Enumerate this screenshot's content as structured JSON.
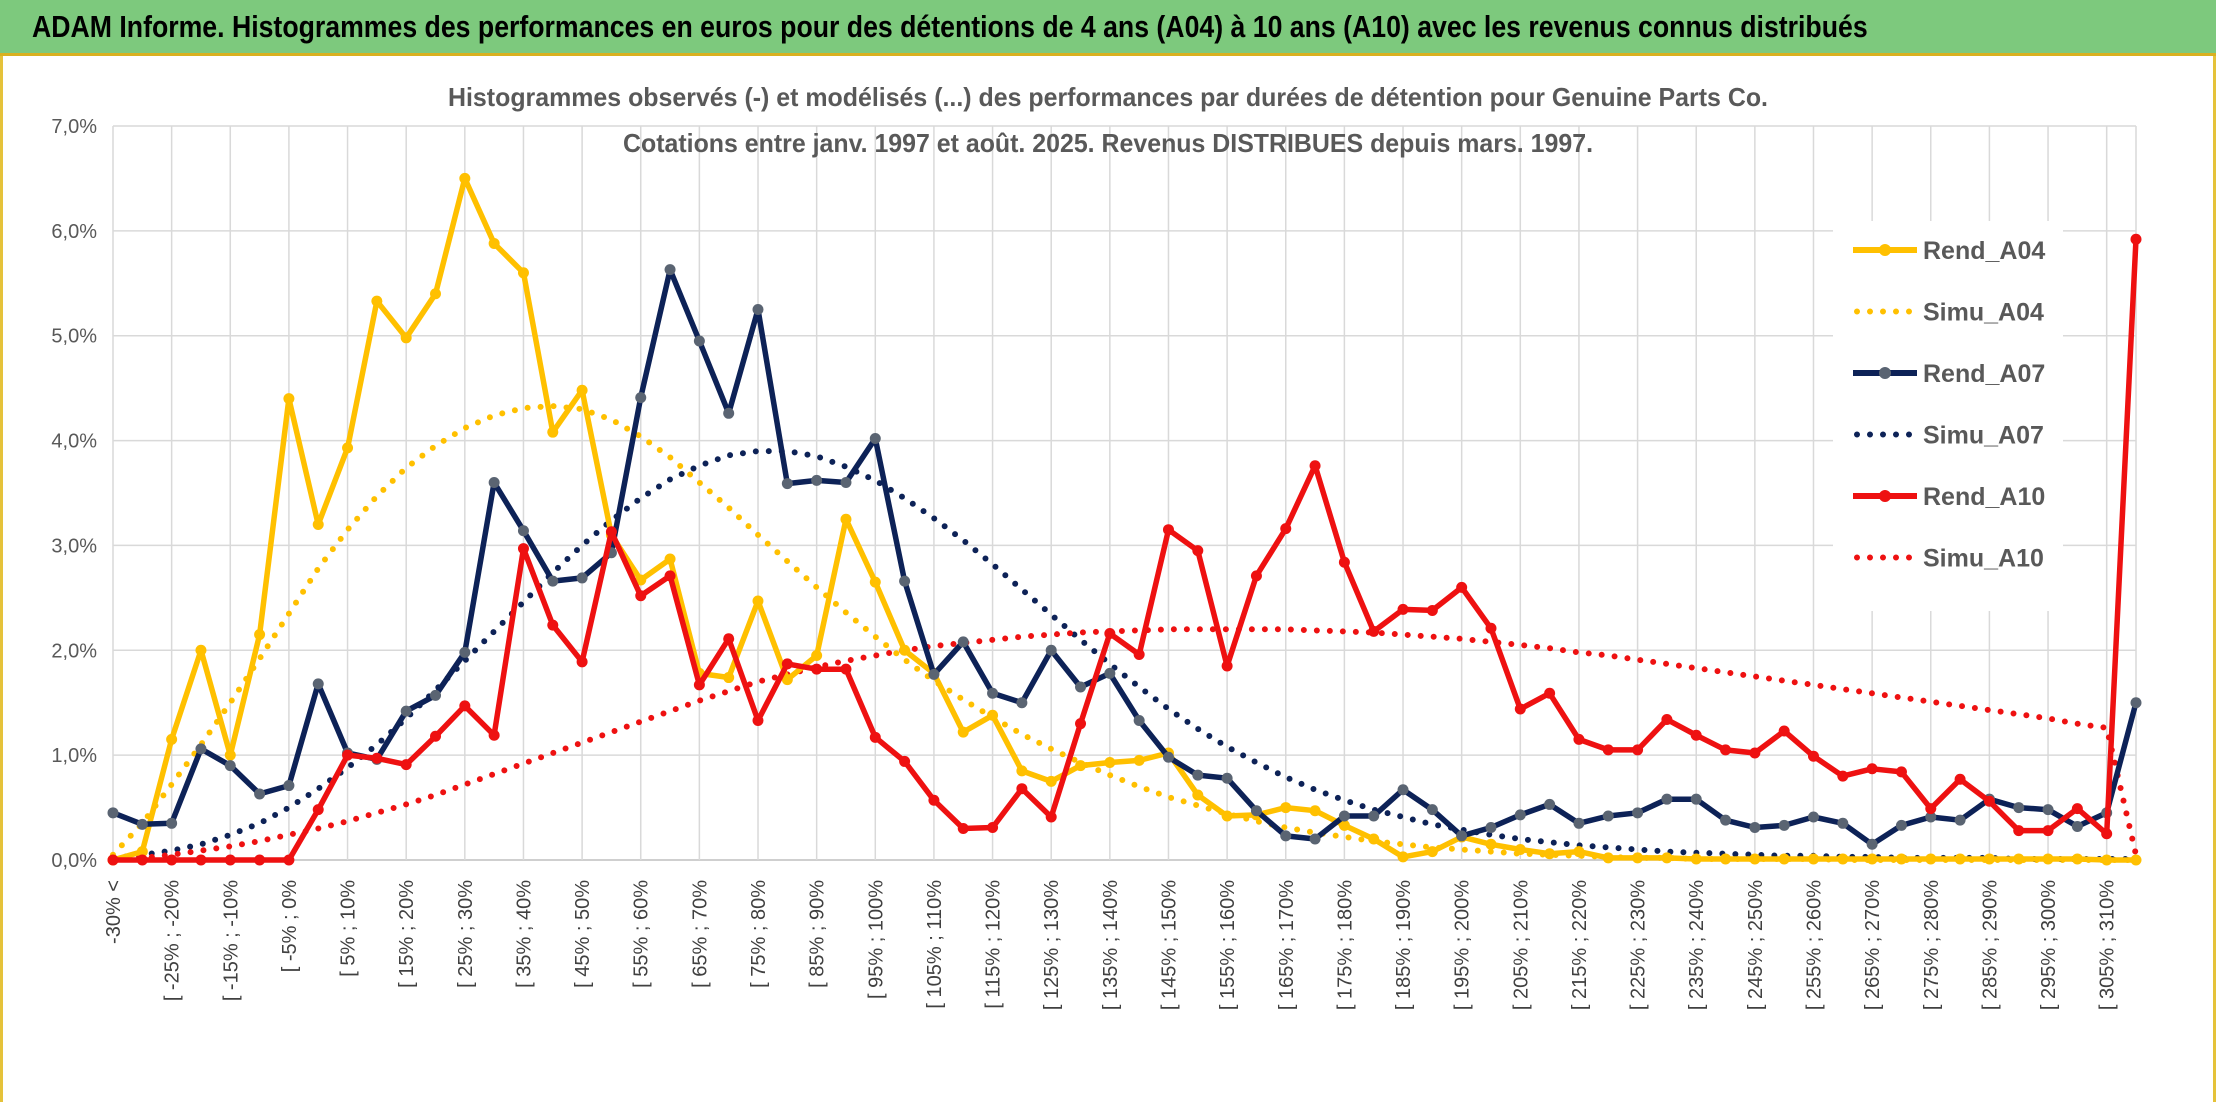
{
  "header": {
    "title": "ADAM Informe. Histogrammes des performances en euros pour des détentions de 4 ans (A04) à 10 ans (A10) avec les revenus connus distribués"
  },
  "chart_data": {
    "type": "line",
    "title": "Histogrammes observés (-) et modélisés (...) des performances par durées de détention pour Genuine Parts Co.",
    "subtitle": "Cotations entre janv. 1997 et août. 2025. Revenus DISTRIBUES depuis mars. 1997.",
    "ylim": [
      0,
      7
    ],
    "y_ticks": [
      "0,0%",
      "1,0%",
      "2,0%",
      "3,0%",
      "4,0%",
      "5,0%",
      "6,0%",
      "7,0%"
    ],
    "grid": true,
    "legend_position": "right",
    "x_tick_labels": [
      "-30% <",
      "[ -25% ; -20%",
      "[ -15% ; -10%",
      "[ -5% ; 0%",
      "[ 5% ; 10%",
      "[ 15% ; 20%",
      "[ 25% ; 30%",
      "[ 35% ; 40%",
      "[ 45% ; 50%",
      "[ 55% ; 60%",
      "[ 65% ; 70%",
      "[ 75% ; 80%",
      "[ 85% ; 90%",
      "[ 95% ; 100%",
      "[ 105% ; 110%",
      "[ 115% ; 120%",
      "[ 125% ; 130%",
      "[ 135% ; 140%",
      "[ 145% ; 150%",
      "[ 155% ; 160%",
      "[ 165% ; 170%",
      "[ 175% ; 180%",
      "[ 185% ; 190%",
      "[ 195% ; 200%",
      "[ 205% ; 210%",
      "[ 215% ; 220%",
      "[ 225% ; 230%",
      "[ 235% ; 240%",
      "[ 245% ; 250%",
      "[ 255% ; 260%",
      "[ 265% ; 270%",
      "[ 275% ; 280%",
      "[ 285% ; 290%",
      "[ 295% ; 300%",
      "[ 305% ; 310%"
    ],
    "series": [
      {
        "name": "Rend_A04",
        "style": "solid",
        "color": "#ffc000",
        "values": [
          0.0,
          0.08,
          1.15,
          2.0,
          1.0,
          2.15,
          4.4,
          3.2,
          3.93,
          5.33,
          4.98,
          5.4,
          6.5,
          5.88,
          5.6,
          4.08,
          4.48,
          3.1,
          2.67,
          2.87,
          1.78,
          1.74,
          2.47,
          1.72,
          1.95,
          3.25,
          2.65,
          2.0,
          1.78,
          1.22,
          1.38,
          0.85,
          0.75,
          0.9,
          0.93,
          0.95,
          1.02,
          0.62,
          0.42,
          0.43,
          0.5,
          0.47,
          0.33,
          0.2,
          0.03,
          0.08,
          0.22,
          0.15,
          0.1,
          0.06,
          0.08,
          0.02,
          0.02,
          0.02,
          0.01,
          0.01,
          0.01,
          0.01,
          0.01,
          0.01,
          0.01,
          0.01,
          0.01,
          0.01,
          0.01,
          0.01,
          0.01,
          0.01,
          0.0,
          0.0
        ]
      },
      {
        "name": "Simu_A04",
        "style": "dotted",
        "color": "#ffc000",
        "values": [
          0.05,
          0.35,
          0.72,
          1.1,
          1.5,
          1.92,
          2.35,
          2.78,
          3.15,
          3.47,
          3.74,
          3.95,
          4.12,
          4.24,
          4.31,
          4.33,
          4.3,
          4.2,
          4.04,
          3.84,
          3.6,
          3.36,
          3.1,
          2.85,
          2.6,
          2.36,
          2.13,
          1.91,
          1.71,
          1.53,
          1.36,
          1.2,
          1.06,
          0.93,
          0.81,
          0.7,
          0.6,
          0.52,
          0.44,
          0.37,
          0.31,
          0.26,
          0.22,
          0.18,
          0.15,
          0.12,
          0.1,
          0.08,
          0.06,
          0.05,
          0.04,
          0.03,
          0.02,
          0.02,
          0.01,
          0.01,
          0.01,
          0.01,
          0.01,
          0.0,
          0.0,
          0.0,
          0.0,
          0.0,
          0.0,
          0.0,
          0.0,
          0.0,
          0.0,
          0.0
        ]
      },
      {
        "name": "Rend_A07",
        "style": "solid",
        "color": "#0d2257",
        "values": [
          0.45,
          0.34,
          0.35,
          1.06,
          0.9,
          0.63,
          0.71,
          1.68,
          1.02,
          0.96,
          1.42,
          1.57,
          1.98,
          3.6,
          3.14,
          2.66,
          2.69,
          2.93,
          4.41,
          5.63,
          4.95,
          4.26,
          5.25,
          3.59,
          3.62,
          3.6,
          4.02,
          2.66,
          1.77,
          2.08,
          1.59,
          1.5,
          2.0,
          1.65,
          1.78,
          1.33,
          0.98,
          0.81,
          0.78,
          0.47,
          0.23,
          0.2,
          0.42,
          0.42,
          0.67,
          0.48,
          0.23,
          0.31,
          0.43,
          0.53,
          0.35,
          0.42,
          0.45,
          0.58,
          0.58,
          0.38,
          0.31,
          0.33,
          0.41,
          0.35,
          0.15,
          0.33,
          0.41,
          0.38,
          0.58,
          0.5,
          0.48,
          0.32,
          0.45,
          1.5
        ]
      },
      {
        "name": "Simu_A07",
        "style": "dotted",
        "color": "#0d2257",
        "values": [
          0.02,
          0.05,
          0.09,
          0.15,
          0.24,
          0.35,
          0.5,
          0.68,
          0.88,
          1.1,
          1.35,
          1.62,
          1.9,
          2.18,
          2.46,
          2.74,
          3.0,
          3.24,
          3.45,
          3.63,
          3.76,
          3.86,
          3.9,
          3.9,
          3.85,
          3.75,
          3.62,
          3.45,
          3.26,
          3.05,
          2.82,
          2.58,
          2.34,
          2.1,
          1.87,
          1.65,
          1.44,
          1.25,
          1.08,
          0.93,
          0.79,
          0.67,
          0.57,
          0.48,
          0.41,
          0.34,
          0.29,
          0.24,
          0.2,
          0.17,
          0.14,
          0.12,
          0.1,
          0.08,
          0.07,
          0.06,
          0.05,
          0.04,
          0.04,
          0.03,
          0.03,
          0.02,
          0.02,
          0.02,
          0.02,
          0.01,
          0.01,
          0.01,
          0.01,
          0.01
        ]
      },
      {
        "name": "Rend_A10",
        "style": "solid",
        "color": "#ee1111",
        "values": [
          0.0,
          0.0,
          0.0,
          0.0,
          0.0,
          0.0,
          0.0,
          0.48,
          1.0,
          0.97,
          0.91,
          1.18,
          1.47,
          1.19,
          2.97,
          2.24,
          1.89,
          3.13,
          2.52,
          2.71,
          1.67,
          2.11,
          1.33,
          1.87,
          1.82,
          1.82,
          1.17,
          0.94,
          0.57,
          0.3,
          0.31,
          0.68,
          0.41,
          1.3,
          2.16,
          1.96,
          3.15,
          2.95,
          1.85,
          2.71,
          3.16,
          3.76,
          2.84,
          2.18,
          2.39,
          2.38,
          2.6,
          2.21,
          1.44,
          1.59,
          1.15,
          1.05,
          1.05,
          1.34,
          1.19,
          1.05,
          1.02,
          1.23,
          0.99,
          0.8,
          0.87,
          0.84,
          0.49,
          0.77,
          0.56,
          0.28,
          0.28,
          0.49,
          0.25,
          5.92
        ]
      },
      {
        "name": "Simu_A10",
        "style": "dotted",
        "color": "#ee1111",
        "values": [
          0.0,
          0.02,
          0.05,
          0.09,
          0.13,
          0.18,
          0.24,
          0.3,
          0.37,
          0.45,
          0.53,
          0.62,
          0.72,
          0.82,
          0.92,
          1.02,
          1.12,
          1.22,
          1.32,
          1.42,
          1.52,
          1.61,
          1.7,
          1.77,
          1.84,
          1.9,
          1.95,
          2.0,
          2.04,
          2.07,
          2.1,
          2.13,
          2.15,
          2.17,
          2.18,
          2.19,
          2.2,
          2.2,
          2.2,
          2.2,
          2.2,
          2.19,
          2.18,
          2.17,
          2.15,
          2.13,
          2.11,
          2.08,
          2.05,
          2.02,
          1.98,
          1.95,
          1.91,
          1.87,
          1.83,
          1.79,
          1.75,
          1.71,
          1.67,
          1.63,
          1.59,
          1.55,
          1.51,
          1.47,
          1.43,
          1.39,
          1.35,
          1.3,
          1.26,
          0.05
        ]
      }
    ]
  }
}
